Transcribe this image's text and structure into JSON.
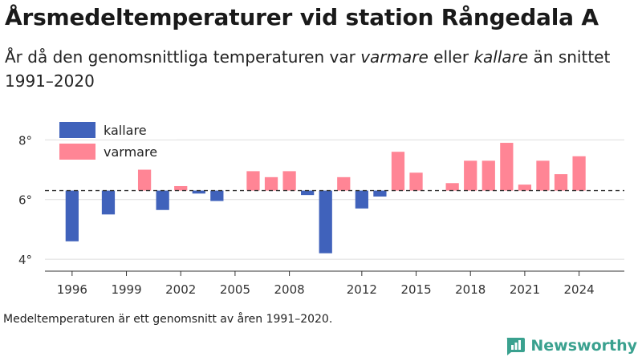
{
  "header": {
    "title": "Årsmedeltemperaturer vid station Rångedala A",
    "subtitle_parts": [
      {
        "text": "År då den genomsnittliga temperaturen var ",
        "italic": false
      },
      {
        "text": "varmare",
        "italic": true
      },
      {
        "text": " eller ",
        "italic": false
      },
      {
        "text": "kallare",
        "italic": true
      },
      {
        "text": " än snittet 1991–2020",
        "italic": false
      }
    ]
  },
  "footnote": "Medeltemperaturen är ett genomsnitt av åren 1991–2020.",
  "brand": {
    "name": "Newsworthy",
    "icon": "bar-chart-logo-icon"
  },
  "colors": {
    "kallare": "#4062bb",
    "varmare": "#ff8595",
    "baseline": "#333333",
    "grid": "#dddddd"
  },
  "chart_data": {
    "type": "bar",
    "baseline": 6.3,
    "baseline_style": "dashed",
    "xlim": [
      1994.5,
      2026.5
    ],
    "ylim": [
      3.6,
      8.6
    ],
    "xticks": [
      1996,
      1999,
      2002,
      2005,
      2008,
      2012,
      2015,
      2018,
      2021,
      2024
    ],
    "yticks": [
      4,
      6,
      8
    ],
    "ytick_suffix": "°",
    "grid": true,
    "legend": {
      "position": "top-left",
      "items": [
        {
          "name": "kallare",
          "color": "#4062bb"
        },
        {
          "name": "varmare",
          "color": "#ff8595"
        }
      ]
    },
    "series": [
      {
        "name": "kallare",
        "color": "#4062bb",
        "points": [
          {
            "x": 1996,
            "y": 4.6
          },
          {
            "x": 1998,
            "y": 5.5
          },
          {
            "x": 2001,
            "y": 5.65
          },
          {
            "x": 2003,
            "y": 6.2
          },
          {
            "x": 2004,
            "y": 5.95
          },
          {
            "x": 2009,
            "y": 6.15
          },
          {
            "x": 2010,
            "y": 4.2
          },
          {
            "x": 2012,
            "y": 5.7
          },
          {
            "x": 2013,
            "y": 6.1
          }
        ]
      },
      {
        "name": "varmare",
        "color": "#ff8595",
        "points": [
          {
            "x": 2000,
            "y": 7.0
          },
          {
            "x": 2002,
            "y": 6.45
          },
          {
            "x": 2006,
            "y": 6.95
          },
          {
            "x": 2007,
            "y": 6.75
          },
          {
            "x": 2008,
            "y": 6.95
          },
          {
            "x": 2011,
            "y": 6.75
          },
          {
            "x": 2014,
            "y": 7.6
          },
          {
            "x": 2015,
            "y": 6.9
          },
          {
            "x": 2017,
            "y": 6.55
          },
          {
            "x": 2018,
            "y": 7.3
          },
          {
            "x": 2019,
            "y": 7.3
          },
          {
            "x": 2020,
            "y": 7.9
          },
          {
            "x": 2021,
            "y": 6.5
          },
          {
            "x": 2022,
            "y": 7.3
          },
          {
            "x": 2023,
            "y": 6.85
          },
          {
            "x": 2024,
            "y": 7.45
          }
        ]
      }
    ]
  }
}
